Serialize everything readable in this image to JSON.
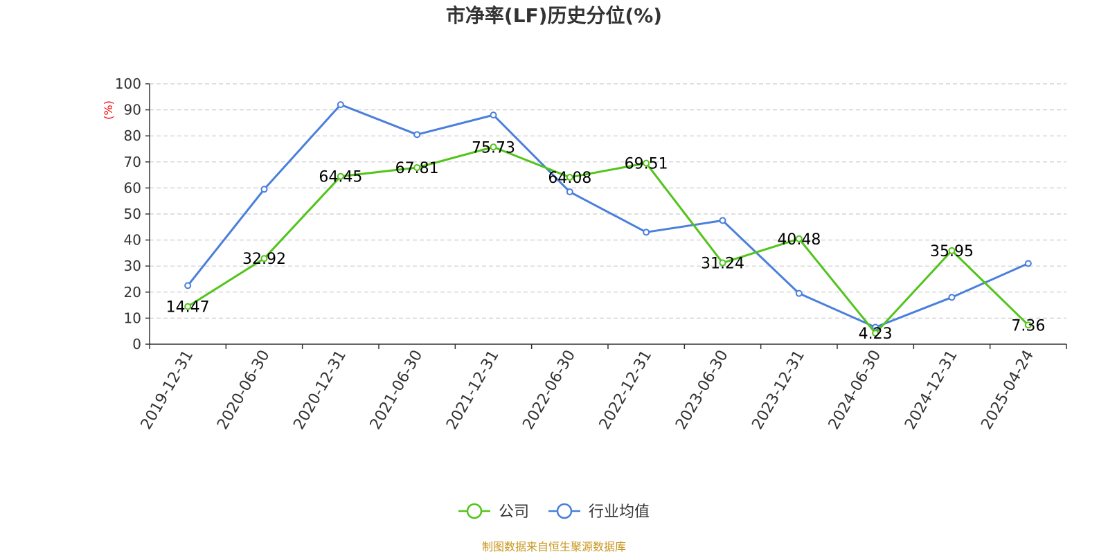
{
  "chart_data": {
    "type": "line",
    "title": "市净率(LF)历史分位(%)",
    "ylabel": "(%)",
    "xlabel": "",
    "ylim": [
      0,
      100
    ],
    "yticks": [
      0,
      10,
      20,
      30,
      40,
      50,
      60,
      70,
      80,
      90,
      100
    ],
    "grid": true,
    "legend_position": "bottom",
    "categories": [
      "2019-12-31",
      "2020-06-30",
      "2020-12-31",
      "2021-06-30",
      "2021-12-31",
      "2022-06-30",
      "2022-12-31",
      "2023-06-30",
      "2023-12-31",
      "2024-06-30",
      "2024-12-31",
      "2025-04-24"
    ],
    "series": [
      {
        "name": "公司",
        "color": "#52c41a",
        "show_labels": true,
        "values": [
          14.47,
          32.92,
          64.45,
          67.81,
          75.73,
          64.08,
          69.51,
          31.24,
          40.48,
          4.23,
          35.95,
          7.36
        ]
      },
      {
        "name": "行业均值",
        "color": "#4a7fdc",
        "show_labels": false,
        "values": [
          22.5,
          59.5,
          92.0,
          80.5,
          88.0,
          58.5,
          43.0,
          47.5,
          19.5,
          6.5,
          18.0,
          31.0
        ]
      }
    ]
  },
  "source_text": "制图数据来自恒生聚源数据库"
}
